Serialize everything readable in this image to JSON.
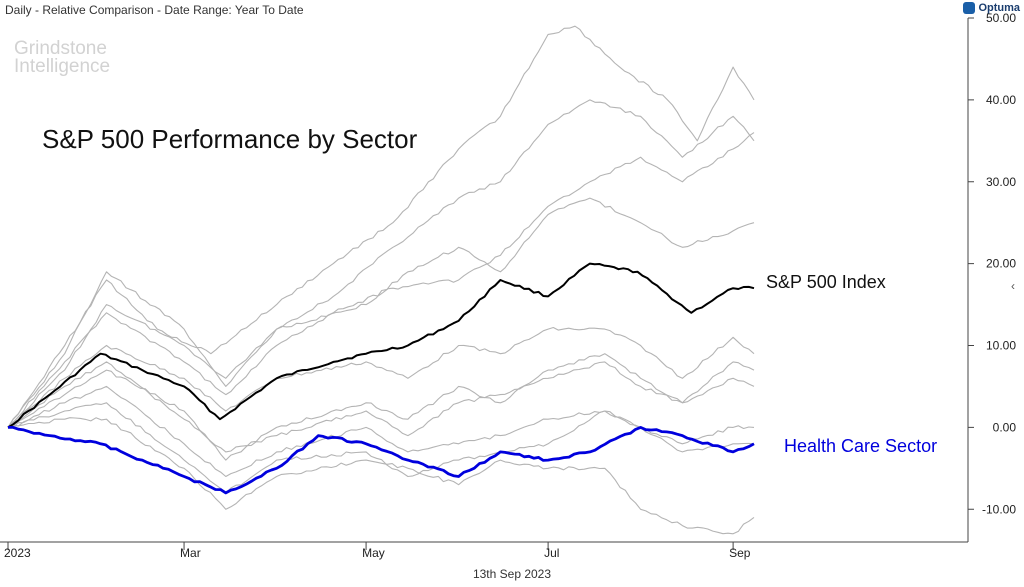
{
  "header": {
    "text": "Daily - Relative Comparison - Date Range: Year To Date"
  },
  "brand": {
    "name": "Optuma"
  },
  "watermark": {
    "line1": "Grindstone",
    "line2": "Intelligence"
  },
  "footer": {
    "date": "13th Sep 2023"
  },
  "chart_data": {
    "type": "line",
    "title": "S&P 500 Performance by Sector",
    "xlabel": "",
    "ylabel": "",
    "x_ticks": [
      "2023",
      "Mar",
      "May",
      "Jul",
      "Sep"
    ],
    "x_tick_dates": [
      "2023-01-01",
      "2023-03-01",
      "2023-05-01",
      "2023-07-01",
      "2023-09-01"
    ],
    "x_range": [
      "2023-01-01",
      "2023-09-08"
    ],
    "y_ticks": [
      -10,
      0,
      10,
      20,
      30,
      40,
      50
    ],
    "y_tick_labels": [
      "-10.00",
      "0.00",
      "10.00",
      "20.00",
      "30.00",
      "40.00",
      "50.00"
    ],
    "ylim": [
      -14,
      50
    ],
    "y_axis_position": "right",
    "grid": false,
    "colors": {
      "highlight": "#0000dd",
      "index": "#000000",
      "sectors": "#b4b4b4"
    },
    "series": [
      {
        "name": "S&P 500 Index",
        "color": "#000000",
        "emphasis": "index",
        "dates": [
          "2023-01-01",
          "2023-01-15",
          "2023-02-01",
          "2023-02-15",
          "2023-03-01",
          "2023-03-13",
          "2023-04-01",
          "2023-04-20",
          "2023-05-01",
          "2023-05-15",
          "2023-06-01",
          "2023-06-15",
          "2023-07-01",
          "2023-07-15",
          "2023-07-31",
          "2023-08-18",
          "2023-09-01",
          "2023-09-08"
        ],
        "values": [
          0,
          4,
          9,
          7,
          5,
          1,
          6,
          8,
          9,
          10,
          13,
          18,
          16,
          20,
          19,
          14,
          17,
          17
        ]
      },
      {
        "name": "Health Care Sector",
        "color": "#0000dd",
        "emphasis": "highlight",
        "dates": [
          "2023-01-01",
          "2023-01-15",
          "2023-02-01",
          "2023-02-15",
          "2023-03-01",
          "2023-03-15",
          "2023-04-01",
          "2023-04-15",
          "2023-05-01",
          "2023-05-15",
          "2023-06-01",
          "2023-06-15",
          "2023-07-01",
          "2023-07-15",
          "2023-08-01",
          "2023-08-15",
          "2023-09-01",
          "2023-09-08"
        ],
        "values": [
          0,
          -1,
          -2,
          -4,
          -6,
          -8,
          -5,
          -1,
          -2,
          -4,
          -6,
          -3,
          -4,
          -3,
          0,
          -1,
          -3,
          -2
        ]
      },
      {
        "dates": [
          "2023-01-01",
          "2023-01-20",
          "2023-02-03",
          "2023-02-20",
          "2023-03-10",
          "2023-04-01",
          "2023-04-20",
          "2023-05-10",
          "2023-06-01",
          "2023-06-15",
          "2023-07-01",
          "2023-07-10",
          "2023-07-25",
          "2023-08-10",
          "2023-08-20",
          "2023-09-01",
          "2023-09-08"
        ],
        "values": [
          0,
          10,
          18,
          12,
          9,
          15,
          20,
          25,
          34,
          38,
          48,
          49,
          44,
          40,
          35,
          44,
          40
        ]
      },
      {
        "dates": [
          "2023-01-01",
          "2023-01-20",
          "2023-02-03",
          "2023-03-01",
          "2023-03-15",
          "2023-04-01",
          "2023-04-20",
          "2023-05-10",
          "2023-06-01",
          "2023-06-15",
          "2023-07-01",
          "2023-07-15",
          "2023-08-01",
          "2023-08-15",
          "2023-09-01",
          "2023-09-08"
        ],
        "values": [
          0,
          7,
          15,
          10,
          6,
          12,
          16,
          22,
          28,
          30,
          37,
          40,
          38,
          33,
          38,
          35
        ]
      },
      {
        "dates": [
          "2023-01-01",
          "2023-01-20",
          "2023-02-03",
          "2023-03-01",
          "2023-03-15",
          "2023-04-01",
          "2023-04-20",
          "2023-05-10",
          "2023-06-01",
          "2023-06-15",
          "2023-07-01",
          "2023-07-15",
          "2023-08-01",
          "2023-08-15",
          "2023-09-01",
          "2023-09-08"
        ],
        "values": [
          0,
          8,
          14,
          8,
          4,
          10,
          14,
          17,
          18,
          21,
          27,
          30,
          33,
          30,
          34,
          36
        ]
      },
      {
        "dates": [
          "2023-01-01",
          "2023-01-20",
          "2023-02-03",
          "2023-03-01",
          "2023-03-15",
          "2023-04-01",
          "2023-05-01",
          "2023-05-15",
          "2023-06-01",
          "2023-06-15",
          "2023-07-01",
          "2023-07-15",
          "2023-08-01",
          "2023-08-15",
          "2023-09-01",
          "2023-09-08"
        ],
        "values": [
          0,
          9,
          19,
          12,
          5,
          12,
          15,
          19,
          22,
          19,
          26,
          28,
          25,
          22,
          24,
          25
        ]
      },
      {
        "dates": [
          "2023-01-01",
          "2023-01-20",
          "2023-02-03",
          "2023-03-01",
          "2023-03-15",
          "2023-04-01",
          "2023-05-01",
          "2023-05-15",
          "2023-06-01",
          "2023-06-15",
          "2023-07-01",
          "2023-07-20",
          "2023-08-01",
          "2023-08-15",
          "2023-09-01",
          "2023-09-08"
        ],
        "values": [
          0,
          6,
          10,
          6,
          2,
          6,
          8,
          6,
          10,
          9,
          12,
          12,
          10,
          6,
          11,
          9
        ]
      },
      {
        "dates": [
          "2023-01-01",
          "2023-01-20",
          "2023-02-03",
          "2023-03-01",
          "2023-03-15",
          "2023-04-01",
          "2023-05-01",
          "2023-05-15",
          "2023-06-01",
          "2023-06-15",
          "2023-07-01",
          "2023-07-20",
          "2023-08-01",
          "2023-08-15",
          "2023-09-01",
          "2023-09-08"
        ],
        "values": [
          0,
          4,
          7,
          2,
          -4,
          0,
          3,
          1,
          5,
          3,
          7,
          9,
          6,
          3,
          8,
          7
        ]
      },
      {
        "dates": [
          "2023-01-01",
          "2023-01-20",
          "2023-02-03",
          "2023-03-01",
          "2023-03-15",
          "2023-04-01",
          "2023-05-01",
          "2023-05-15",
          "2023-06-01",
          "2023-06-15",
          "2023-07-01",
          "2023-07-20",
          "2023-08-01",
          "2023-08-15",
          "2023-09-01",
          "2023-09-08"
        ],
        "values": [
          0,
          5,
          8,
          1,
          -3,
          -1,
          2,
          -1,
          3,
          4,
          6,
          8,
          5,
          3,
          6,
          5
        ]
      },
      {
        "dates": [
          "2023-01-01",
          "2023-01-20",
          "2023-02-03",
          "2023-03-01",
          "2023-03-15",
          "2023-04-01",
          "2023-05-01",
          "2023-05-15",
          "2023-06-01",
          "2023-06-15",
          "2023-07-01",
          "2023-07-20",
          "2023-08-01",
          "2023-08-15",
          "2023-09-01",
          "2023-09-08"
        ],
        "values": [
          0,
          3,
          5,
          -2,
          -6,
          -3,
          0,
          -3,
          -2,
          -1,
          1,
          2,
          0,
          -2,
          0,
          0
        ]
      },
      {
        "dates": [
          "2023-01-01",
          "2023-01-20",
          "2023-02-03",
          "2023-03-01",
          "2023-03-15",
          "2023-04-01",
          "2023-05-01",
          "2023-05-15",
          "2023-06-01",
          "2023-06-15",
          "2023-07-01",
          "2023-07-20",
          "2023-08-01",
          "2023-08-15",
          "2023-09-01",
          "2023-09-08"
        ],
        "values": [
          0,
          2,
          3,
          -4,
          -8,
          -4,
          -3,
          -6,
          -4,
          -3,
          -2,
          2,
          0,
          -3,
          -2,
          -2
        ]
      },
      {
        "dates": [
          "2023-01-01",
          "2023-01-20",
          "2023-02-03",
          "2023-03-01",
          "2023-03-15",
          "2023-04-01",
          "2023-05-01",
          "2023-05-15",
          "2023-06-01",
          "2023-06-15",
          "2023-07-01",
          "2023-07-20",
          "2023-08-01",
          "2023-08-15",
          "2023-09-01",
          "2023-09-08"
        ],
        "values": [
          0,
          1,
          1,
          -5,
          -10,
          -6,
          -4,
          -5,
          -7,
          -4,
          -5,
          -5,
          -10,
          -12,
          -13,
          -11
        ]
      }
    ]
  }
}
